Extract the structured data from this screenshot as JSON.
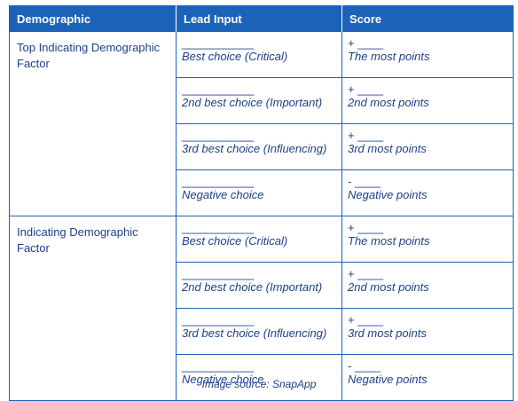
{
  "header": {
    "col1": "Demographic",
    "col2": "Lead Input",
    "col3": "Score"
  },
  "groups": [
    {
      "demographic": "Top Indicating Demographic Factor",
      "rows": [
        {
          "blank": "____________",
          "choice": "Best choice (Critical)",
          "sign": "+",
          "score_blank": "____",
          "points": "The most points"
        },
        {
          "blank": "____________",
          "choice": "2nd best choice (Important)",
          "sign": "+",
          "score_blank": "____",
          "points": "2nd most points"
        },
        {
          "blank": "____________",
          "choice": "3rd best choice (Influencing)",
          "sign": "+",
          "score_blank": "____",
          "points": "3rd most points"
        },
        {
          "blank": "____________",
          "choice": "Negative choice",
          "sign": "-",
          "score_blank": "____",
          "points": "Negative points"
        }
      ]
    },
    {
      "demographic": "Indicating Demographic Factor",
      "rows": [
        {
          "blank": "____________",
          "choice": "Best choice (Critical)",
          "sign": "+",
          "score_blank": "____",
          "points": "The most points"
        },
        {
          "blank": "____________",
          "choice": "2nd best choice (Important)",
          "sign": "+",
          "score_blank": "____",
          "points": "2nd most points"
        },
        {
          "blank": "____________",
          "choice": "3rd best choice (Influencing)",
          "sign": "+",
          "score_blank": "____",
          "points": "3rd most points"
        },
        {
          "blank": "____________",
          "choice": "Negative choice",
          "sign": "-",
          "score_blank": "____",
          "points": "Negative points"
        }
      ]
    }
  ],
  "caption": "Image source: SnapApp",
  "colors": {
    "header_bg": "#1b63b8",
    "border": "#1b63b8",
    "text": "#1d3f88"
  }
}
